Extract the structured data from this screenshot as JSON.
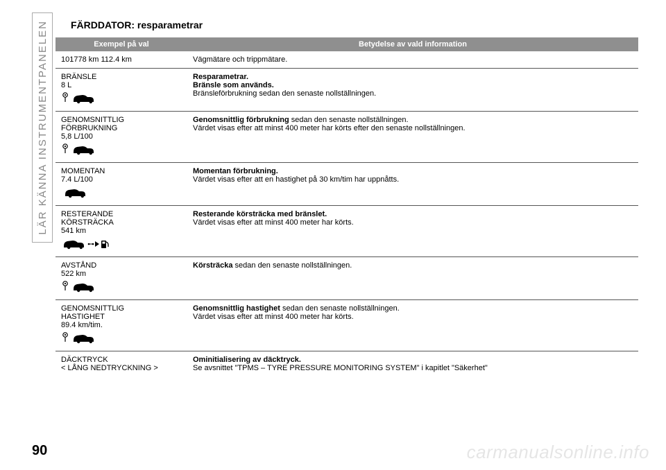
{
  "sidetab": "LÄR KÄNNA INSTRUMENTPANELEN",
  "title": "FÄRDDATOR: resparametrar",
  "header": {
    "col1": "Exempel på val",
    "col2": "Betydelse av vald information"
  },
  "rows": [
    {
      "left_lines": [
        "101778 km 112.4 km"
      ],
      "icon": null,
      "right_segments": [
        {
          "text": "Vägmätare och trippmätare.",
          "bold": false
        }
      ]
    },
    {
      "left_lines": [
        "BRÄNSLE",
        "8 L"
      ],
      "icon": "pin-car",
      "right_segments": [
        {
          "text": "Resparametrar.",
          "bold": true,
          "break": true
        },
        {
          "text": "Bränsle som används.",
          "bold": true,
          "break": true
        },
        {
          "text": "Bränsleförbrukning sedan den senaste nollställningen.",
          "bold": false
        }
      ]
    },
    {
      "left_lines": [
        "GENOMSNITTLIG",
        "FÖRBRUKNING",
        "5,8 L/100"
      ],
      "icon": "pin-car",
      "right_segments": [
        {
          "text": "Genomsnittlig förbrukning",
          "bold": true
        },
        {
          "text": " sedan den senaste nollställningen.",
          "bold": false,
          "break": true
        },
        {
          "text": "Värdet visas efter att minst 400 meter har körts efter den senaste nollställningen.",
          "bold": false
        }
      ]
    },
    {
      "left_lines": [
        "MOMENTAN",
        "7.4 L/100"
      ],
      "icon": "car",
      "right_segments": [
        {
          "text": "Momentan förbrukning.",
          "bold": true,
          "break": true
        },
        {
          "text": "Värdet visas efter att en hastighet på 30 km/tim har uppnåtts.",
          "bold": false
        }
      ]
    },
    {
      "left_lines": [
        "RESTERANDE",
        "KÖRSTRÄCKA",
        "541 km"
      ],
      "icon": "car-fuel",
      "right_segments": [
        {
          "text": "Resterande körsträcka med bränslet.",
          "bold": true,
          "break": true
        },
        {
          "text": "Värdet visas efter att minst 400 meter har körts.",
          "bold": false
        }
      ]
    },
    {
      "left_lines": [
        "AVSTÅND",
        "522 km"
      ],
      "icon": "pin-car",
      "right_segments": [
        {
          "text": "Körsträcka",
          "bold": true
        },
        {
          "text": " sedan den senaste nollställningen.",
          "bold": false
        }
      ]
    },
    {
      "left_lines": [
        "GENOMSNITTLIG",
        "HASTIGHET",
        "89.4 km/tim."
      ],
      "icon": "pin-car",
      "right_segments": [
        {
          "text": "Genomsnittlig hastighet",
          "bold": true
        },
        {
          "text": " sedan den senaste nollställningen.",
          "bold": false,
          "break": true
        },
        {
          "text": "Värdet visas efter att minst 400 meter har körts.",
          "bold": false
        }
      ]
    },
    {
      "left_lines": [
        "DÄCKTRYCK",
        "< LÅNG NEDTRYCKNING >"
      ],
      "icon": null,
      "right_segments": [
        {
          "text": "Ominitialisering av däcktryck.",
          "bold": true,
          "break": true
        },
        {
          "text": "Se avsnittet \"TPMS – TYRE PRESSURE MONITORING SYSTEM\" i kapitlet \"Säkerhet\"",
          "bold": false
        }
      ]
    }
  ],
  "page_number": "90",
  "watermark": "carmanualsonline.info",
  "colors": {
    "header_bg": "#8f8f8f",
    "header_fg": "#ffffff",
    "rule": "#555555",
    "sidetab_text": "#888888",
    "watermark": "rgba(0,0,0,0.10)"
  }
}
